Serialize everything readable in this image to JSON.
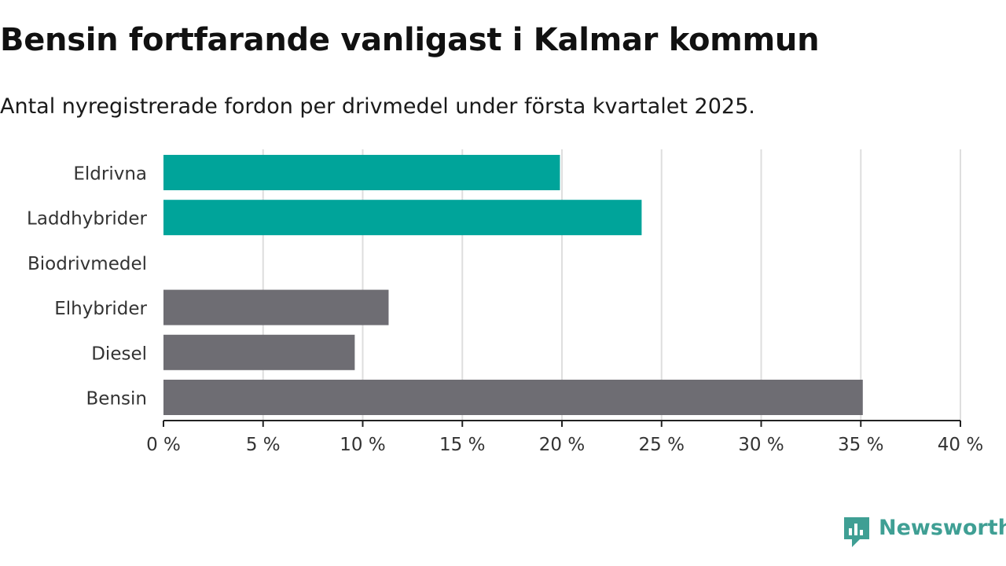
{
  "header": {
    "title": "Bensin fortfarande vanligast i Kalmar kommun",
    "subtitle": "Antal nyregistrerade fordon per drivmedel under första kvartalet 2025."
  },
  "brand": {
    "name": "Newsworthy",
    "icon": "newsworthy-logo-icon",
    "color": "#3f9f94"
  },
  "chart_data": {
    "type": "bar",
    "orientation": "horizontal",
    "categories": [
      "Eldrivna",
      "Laddhybrider",
      "Biodrivmedel",
      "Elhybrider",
      "Diesel",
      "Bensin"
    ],
    "values": [
      19.9,
      24.0,
      0,
      11.3,
      9.6,
      35.1
    ],
    "colors": [
      "#00a49a",
      "#00a49a",
      "#00a49a",
      "#6e6d73",
      "#6e6d73",
      "#6e6d73"
    ],
    "xlim": [
      0,
      40
    ],
    "xticks": [
      0,
      5,
      10,
      15,
      20,
      25,
      30,
      35,
      40
    ],
    "tick_suffix": " %",
    "grid": true
  }
}
